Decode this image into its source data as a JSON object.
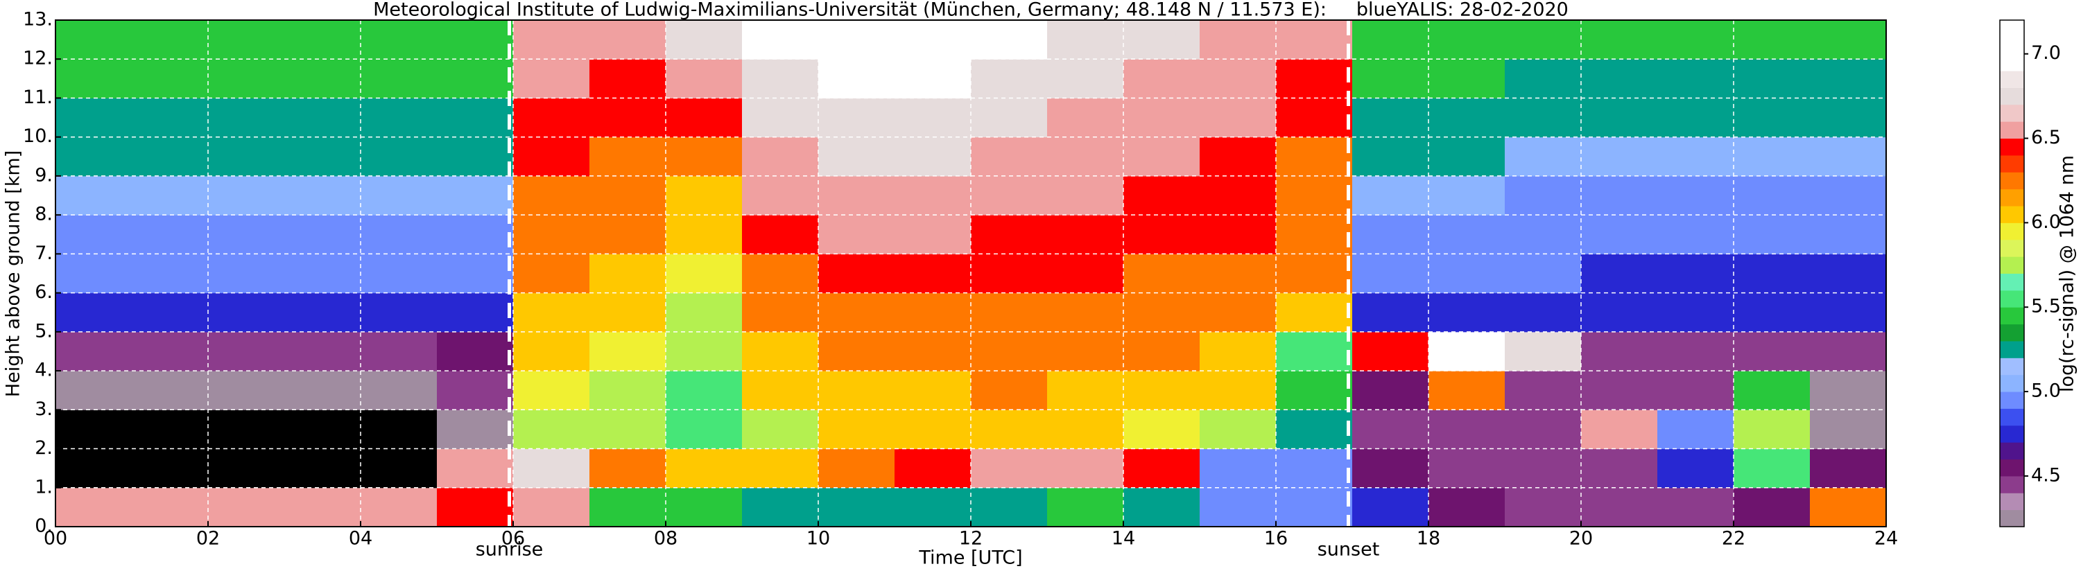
{
  "chart_data": {
    "type": "heatmap",
    "title": "Meteorological Institute of Ludwig-Maximilians-Universität (München, Germany; 48.148 N / 11.573 E):     blueYALIS: 28-02-2020",
    "xlabel": "Time [UTC]",
    "ylabel": "Height above ground [km]",
    "colorbar_label": "log(rc-signal) @ 1064 nm",
    "xlim": [
      0,
      24
    ],
    "ylim": [
      0,
      13
    ],
    "xticks": [
      {
        "value": 0,
        "label": "00"
      },
      {
        "value": 2,
        "label": "02"
      },
      {
        "value": 4,
        "label": "04"
      },
      {
        "value": 6,
        "label": "06"
      },
      {
        "value": 8,
        "label": "08"
      },
      {
        "value": 10,
        "label": "10"
      },
      {
        "value": 12,
        "label": "12"
      },
      {
        "value": 14,
        "label": "14"
      },
      {
        "value": 16,
        "label": "16"
      },
      {
        "value": 18,
        "label": "18"
      },
      {
        "value": 20,
        "label": "20"
      },
      {
        "value": 22,
        "label": "22"
      },
      {
        "value": 24,
        "label": "24"
      }
    ],
    "yticks": [
      {
        "value": 0,
        "label": "0."
      },
      {
        "value": 1,
        "label": "1."
      },
      {
        "value": 2,
        "label": "2."
      },
      {
        "value": 3,
        "label": "3."
      },
      {
        "value": 4,
        "label": "4."
      },
      {
        "value": 5,
        "label": "5."
      },
      {
        "value": 6,
        "label": "6."
      },
      {
        "value": 7,
        "label": "7."
      },
      {
        "value": 8,
        "label": "8."
      },
      {
        "value": 9,
        "label": "9."
      },
      {
        "value": 10,
        "label": "10."
      },
      {
        "value": 11,
        "label": "11."
      },
      {
        "value": 12,
        "label": "12."
      },
      {
        "value": 13,
        "label": "13."
      }
    ],
    "grid": true,
    "clim": [
      4.2,
      7.2
    ],
    "cticks": [
      4.5,
      {
        "value": 5,
        "label": "5.0"
      },
      5.5,
      {
        "value": 6,
        "label": "6.0"
      },
      6.5,
      {
        "value": 7,
        "label": "7.0"
      }
    ],
    "colors": [
      "#a08ca0",
      "#b48cb4",
      "#8c3c8c",
      "#6e146e",
      "#50148c",
      "#2828d2",
      "#3c50f0",
      "#6e8cff",
      "#8cb4ff",
      "#a0beff",
      "#00a08c",
      "#14a032",
      "#28c83c",
      "#46e678",
      "#64f0b4",
      "#b4f050",
      "#dcf55a",
      "#f0f032",
      "#ffc800",
      "#ffa000",
      "#ff7800",
      "#ff3c00",
      "#ff0000",
      "#f0a0a0",
      "#f0c8c8",
      "#e6dcdc",
      "#f0e6e6",
      "#ffffff",
      "#ffffff",
      "#ffffff"
    ],
    "under_color": "#000000",
    "x_edges": [
      0,
      1,
      2,
      3,
      4,
      5,
      6,
      7,
      8,
      9,
      10,
      11,
      12,
      13,
      14,
      15,
      16,
      17,
      18,
      19,
      20,
      21,
      22,
      23,
      24
    ],
    "y_edges": [
      0,
      1,
      2,
      3,
      4,
      5,
      6,
      7,
      8,
      9,
      10,
      11,
      12,
      13
    ],
    "z": [
      [
        6.6,
        6.5,
        6.5,
        6.6,
        6.6,
        6.4,
        6.6,
        5.5,
        5.4,
        5.3,
        5.3,
        5.2,
        5.3,
        5.4,
        5.3,
        5.0,
        4.9,
        4.7,
        4.6,
        4.5,
        4.5,
        4.5,
        4.6,
        6.2
      ],
      [
        4.0,
        4.0,
        4.0,
        4.0,
        4.0,
        6.6,
        6.8,
        6.2,
        6.0,
        6.1,
        6.3,
        6.4,
        6.5,
        6.5,
        6.4,
        5.0,
        4.9,
        4.6,
        4.5,
        4.5,
        4.5,
        4.7,
        5.6,
        4.6
      ],
      [
        4.1,
        4.1,
        4.1,
        4.1,
        4.1,
        4.2,
        5.8,
        5.7,
        5.6,
        5.8,
        6.0,
        6.0,
        6.1,
        6.0,
        5.9,
        5.8,
        5.2,
        4.5,
        4.4,
        4.5,
        6.5,
        5.0,
        5.8,
        4.2
      ],
      [
        4.3,
        4.3,
        4.3,
        4.3,
        4.3,
        4.4,
        5.9,
        5.8,
        5.6,
        6.0,
        6.1,
        6.1,
        6.2,
        6.1,
        6.0,
        6.0,
        5.5,
        4.6,
        6.2,
        4.4,
        4.4,
        4.4,
        5.5,
        4.3
      ],
      [
        4.5,
        4.5,
        4.5,
        4.5,
        4.5,
        4.6,
        6.0,
        5.9,
        5.7,
        6.1,
        6.2,
        6.2,
        6.3,
        6.2,
        6.2,
        6.1,
        5.6,
        6.4,
        7.0,
        6.8,
        4.5,
        4.5,
        4.5,
        4.5
      ],
      [
        4.7,
        4.7,
        4.7,
        4.7,
        4.7,
        4.8,
        6.1,
        6.0,
        5.8,
        6.2,
        6.3,
        6.3,
        6.3,
        6.3,
        6.3,
        6.2,
        6.0,
        4.7,
        4.7,
        4.7,
        4.7,
        4.7,
        4.7,
        4.7
      ],
      [
        4.9,
        4.9,
        4.9,
        4.9,
        4.9,
        4.9,
        6.2,
        6.1,
        5.9,
        6.3,
        6.4,
        6.4,
        6.4,
        6.4,
        6.3,
        6.3,
        6.2,
        4.9,
        4.9,
        4.9,
        4.8,
        4.8,
        4.8,
        4.8
      ],
      [
        5.0,
        5.0,
        5.0,
        5.0,
        5.0,
        5.0,
        6.3,
        6.2,
        6.0,
        6.4,
        6.5,
        6.5,
        6.4,
        6.4,
        6.4,
        6.4,
        6.2,
        5.0,
        5.0,
        5.0,
        4.9,
        4.9,
        4.9,
        4.9
      ],
      [
        5.1,
        5.1,
        5.1,
        5.1,
        5.1,
        5.1,
        6.3,
        6.3,
        6.1,
        6.5,
        6.6,
        6.6,
        6.5,
        6.5,
        6.4,
        6.4,
        6.3,
        5.1,
        5.1,
        5.0,
        5.0,
        5.0,
        5.0,
        5.0
      ],
      [
        5.2,
        5.2,
        5.2,
        5.2,
        5.2,
        5.2,
        6.4,
        6.3,
        6.2,
        6.6,
        6.7,
        6.7,
        6.6,
        6.5,
        6.5,
        6.4,
        6.3,
        5.2,
        5.2,
        5.1,
        5.1,
        5.1,
        5.1,
        5.1
      ],
      [
        5.3,
        5.3,
        5.3,
        5.3,
        5.3,
        5.3,
        6.4,
        6.4,
        6.4,
        6.7,
        6.8,
        6.8,
        6.7,
        6.6,
        6.5,
        6.5,
        6.4,
        5.3,
        5.3,
        5.2,
        5.2,
        5.2,
        5.2,
        5.2
      ],
      [
        5.4,
        5.4,
        5.4,
        5.4,
        5.4,
        5.4,
        6.5,
        6.4,
        6.6,
        6.8,
        6.9,
        6.9,
        6.8,
        6.7,
        6.6,
        6.5,
        6.4,
        5.4,
        5.4,
        5.3,
        5.3,
        5.3,
        5.3,
        5.3
      ],
      [
        5.5,
        5.5,
        5.5,
        5.5,
        5.5,
        5.5,
        6.5,
        6.5,
        6.8,
        6.9,
        7.0,
        7.0,
        6.9,
        6.8,
        6.7,
        6.6,
        6.5,
        5.5,
        5.5,
        5.4,
        5.4,
        5.4,
        5.4,
        5.4
      ]
    ],
    "annotations": [
      {
        "text": "sunrise",
        "x": 5.95
      },
      {
        "text": "sunset",
        "x": 16.95
      }
    ]
  }
}
